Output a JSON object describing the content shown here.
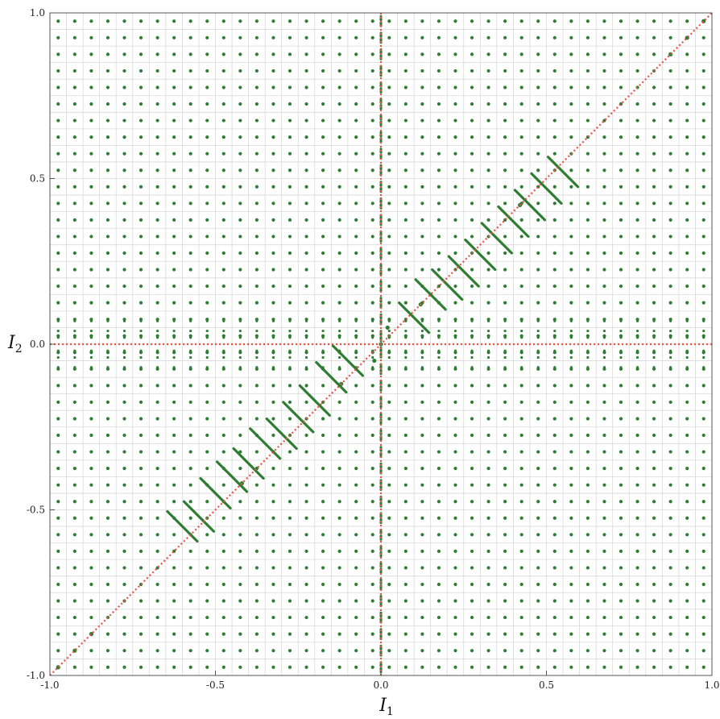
{
  "chart_data": {
    "type": "scatter",
    "title": "",
    "xlabel": "I",
    "xlabel_sub": "1",
    "ylabel": "I",
    "ylabel_sub": "2",
    "xlim": [
      -1.0,
      1.0
    ],
    "ylim": [
      -1.0,
      1.0
    ],
    "x_ticks": [
      {
        "value": -1.0,
        "label": "-1.0"
      },
      {
        "value": -0.5,
        "label": "-0.5"
      },
      {
        "value": 0.0,
        "label": "0.0"
      },
      {
        "value": 0.5,
        "label": "0.5"
      },
      {
        "value": 1.0,
        "label": "1.0"
      }
    ],
    "y_ticks": [
      {
        "value": -1.0,
        "label": "-1.0"
      },
      {
        "value": -0.5,
        "label": "-0.5"
      },
      {
        "value": 0.0,
        "label": "0.0"
      },
      {
        "value": 0.5,
        "label": "0.5"
      },
      {
        "value": 1.0,
        "label": "1.0"
      }
    ],
    "grid": true,
    "grid_spacing": 0.05,
    "point_grid": {
      "start": -0.975,
      "end": 0.975,
      "step": 0.05
    },
    "point_color": "#2e7d32",
    "reference_line_color": "#e8534a",
    "reference_lines": [
      {
        "kind": "diagonal",
        "equation": "I2 = I1"
      },
      {
        "kind": "horizontal",
        "equation": "I2 = 0"
      },
      {
        "kind": "vertical",
        "equation": "I1 = 0"
      }
    ],
    "series": [
      {
        "values": [
          {
            "x": -0.975,
            "y": -0.975
          },
          {
            "x": -0.925,
            "y": -0.925
          },
          {
            "x": -0.875,
            "y": -0.875
          },
          {
            "x": 0.975,
            "y": 0.975
          },
          {
            "x": 0.925,
            "y": 0.925
          },
          {
            "x": 0.875,
            "y": 0.875
          },
          {
            "x": -0.42,
            "y": -0.42
          },
          {
            "x": 0.42,
            "y": 0.42
          },
          {
            "x": -0.12,
            "y": -0.12
          },
          {
            "x": 0.12,
            "y": 0.12
          },
          {
            "x": 0.0,
            "y": 0.0
          },
          {
            "x": 0.02,
            "y": 0.05
          },
          {
            "x": -0.02,
            "y": -0.05
          }
        ]
      }
    ],
    "diagonal_streaks": [
      {
        "cx": -0.6,
        "cy": -0.55
      },
      {
        "cx": -0.55,
        "cy": -0.52
      },
      {
        "cx": -0.5,
        "cy": -0.45
      },
      {
        "cx": -0.45,
        "cy": -0.4
      },
      {
        "cx": -0.4,
        "cy": -0.36
      },
      {
        "cx": -0.35,
        "cy": -0.3
      },
      {
        "cx": -0.3,
        "cy": -0.27
      },
      {
        "cx": -0.25,
        "cy": -0.22
      },
      {
        "cx": -0.2,
        "cy": -0.17
      },
      {
        "cx": -0.15,
        "cy": -0.1
      },
      {
        "cx": -0.1,
        "cy": -0.05
      },
      {
        "cx": 0.1,
        "cy": 0.08
      },
      {
        "cx": 0.15,
        "cy": 0.15
      },
      {
        "cx": 0.2,
        "cy": 0.18
      },
      {
        "cx": 0.25,
        "cy": 0.22
      },
      {
        "cx": 0.3,
        "cy": 0.27
      },
      {
        "cx": 0.35,
        "cy": 0.32
      },
      {
        "cx": 0.4,
        "cy": 0.37
      },
      {
        "cx": 0.45,
        "cy": 0.42
      },
      {
        "cx": 0.5,
        "cy": 0.47
      },
      {
        "cx": 0.55,
        "cy": 0.52
      }
    ]
  }
}
